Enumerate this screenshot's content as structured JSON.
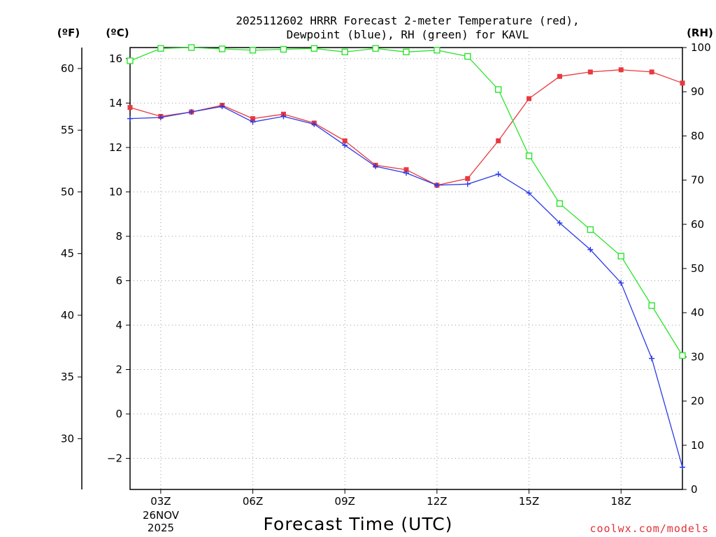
{
  "chart_data": {
    "type": "line",
    "title_line1": "2025112602 HRRR Forecast 2-meter Temperature (red),",
    "title_line2": "Dewpoint (blue), RH (green) for KAVL",
    "unit_left_f": "(ºF)",
    "unit_left_c": "(ºC)",
    "unit_right": "(RH)",
    "xlabel": "Forecast Time (UTC)",
    "credit": "coolwx.com/models",
    "date_label_line1": "26NOV",
    "date_label_line2": "2025",
    "xlim": [
      2,
      20
    ],
    "ylim_c": [
      -3.4,
      16.5
    ],
    "ylim_rh": [
      0,
      100
    ],
    "x": [
      2,
      3,
      4,
      5,
      6,
      7,
      8,
      9,
      10,
      11,
      12,
      13,
      14,
      15,
      16,
      17,
      18,
      19,
      20
    ],
    "x_ticks": [
      {
        "value": 3,
        "label": "03Z"
      },
      {
        "value": 6,
        "label": "06Z"
      },
      {
        "value": 9,
        "label": "09Z"
      },
      {
        "value": 12,
        "label": "12Z"
      },
      {
        "value": 15,
        "label": "15Z"
      },
      {
        "value": 18,
        "label": "18Z"
      }
    ],
    "y_ticks_c": [
      -2,
      0,
      2,
      4,
      6,
      8,
      10,
      12,
      14,
      16
    ],
    "y_ticks_f": [
      30,
      35,
      40,
      45,
      50,
      55,
      60
    ],
    "y_ticks_rh": [
      0,
      10,
      20,
      30,
      40,
      50,
      60,
      70,
      80,
      90,
      100
    ],
    "series": [
      {
        "name": "Temperature",
        "unit": "C",
        "color": "#e8393e",
        "marker": "filled-square",
        "values": [
          13.8,
          13.4,
          13.6,
          13.9,
          13.3,
          13.5,
          13.1,
          12.3,
          11.2,
          11.0,
          10.3,
          10.6,
          12.3,
          14.2,
          15.2,
          15.4,
          15.5,
          15.4,
          14.9
        ]
      },
      {
        "name": "Dewpoint",
        "unit": "C",
        "color": "#2a3ae8",
        "marker": "plus",
        "values": [
          13.3,
          13.35,
          13.6,
          13.85,
          13.15,
          13.4,
          13.05,
          12.1,
          11.15,
          10.85,
          10.3,
          10.35,
          10.8,
          9.95,
          8.6,
          7.4,
          5.9,
          2.5,
          -2.4
        ]
      },
      {
        "name": "RH",
        "unit": "%",
        "color": "#2ee32e",
        "marker": "open-square",
        "values": [
          97,
          99.8,
          100,
          99.7,
          99.4,
          99.6,
          99.8,
          99,
          99.8,
          99,
          99.4,
          98,
          90.5,
          75.5,
          64.7,
          58.8,
          52.8,
          41.6,
          30.3
        ]
      }
    ]
  }
}
